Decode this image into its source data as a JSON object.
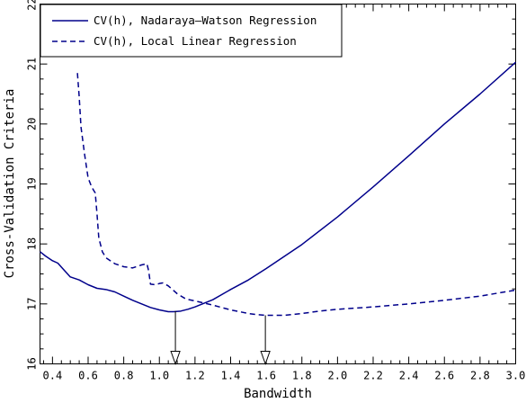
{
  "chart_data": {
    "type": "line",
    "title": "",
    "xlabel": "Bandwidth",
    "ylabel": "Cross-Validation Criteria",
    "xlim": [
      0.33,
      3.0
    ],
    "ylim": [
      16,
      22
    ],
    "grid": false,
    "legend_position": "top-left",
    "xticks": [
      {
        "value": 0.4,
        "label": "0.4"
      },
      {
        "value": 0.6,
        "label": "0.6"
      },
      {
        "value": 0.8,
        "label": "0.8"
      },
      {
        "value": 1.0,
        "label": "1.0"
      },
      {
        "value": 1.2,
        "label": "1.2"
      },
      {
        "value": 1.4,
        "label": "1.4"
      },
      {
        "value": 1.6,
        "label": "1.6"
      },
      {
        "value": 1.8,
        "label": "1.8"
      },
      {
        "value": 2.0,
        "label": "2.0"
      },
      {
        "value": 2.2,
        "label": "2.2"
      },
      {
        "value": 2.4,
        "label": "2.4"
      },
      {
        "value": 2.6,
        "label": "2.6"
      },
      {
        "value": 2.8,
        "label": "2.8"
      },
      {
        "value": 3.0,
        "label": "3.0"
      }
    ],
    "yticks": [
      {
        "value": 16,
        "label": "16"
      },
      {
        "value": 17,
        "label": "17"
      },
      {
        "value": 18,
        "label": "18"
      },
      {
        "value": 19,
        "label": "19"
      },
      {
        "value": 20,
        "label": "20"
      },
      {
        "value": 21,
        "label": "21"
      },
      {
        "value": 22,
        "label": "22"
      }
    ],
    "series": [
      {
        "name": "CV(h), Nadaraya–Watson Regression",
        "style": "solid",
        "color": "#00008b",
        "x": [
          0.33,
          0.36,
          0.4,
          0.43,
          0.46,
          0.5,
          0.55,
          0.6,
          0.65,
          0.7,
          0.75,
          0.8,
          0.85,
          0.9,
          0.95,
          1.0,
          1.05,
          1.08,
          1.12,
          1.16,
          1.2,
          1.25,
          1.3,
          1.4,
          1.5,
          1.6,
          1.8,
          2.0,
          2.2,
          2.4,
          2.6,
          2.8,
          3.0
        ],
        "y": [
          17.87,
          17.8,
          17.72,
          17.68,
          17.58,
          17.45,
          17.4,
          17.32,
          17.26,
          17.24,
          17.2,
          17.13,
          17.06,
          17.0,
          16.94,
          16.9,
          16.87,
          16.87,
          16.88,
          16.91,
          16.95,
          17.01,
          17.07,
          17.24,
          17.4,
          17.59,
          17.99,
          18.45,
          18.95,
          19.47,
          20.0,
          20.5,
          21.03
        ]
      },
      {
        "name": "CV(h), Local Linear Regression",
        "style": "dashed",
        "color": "#00008b",
        "x": [
          0.54,
          0.55,
          0.56,
          0.58,
          0.6,
          0.62,
          0.64,
          0.65,
          0.66,
          0.68,
          0.7,
          0.75,
          0.8,
          0.85,
          0.9,
          0.93,
          0.94,
          0.95,
          0.98,
          1.0,
          1.02,
          1.05,
          1.1,
          1.15,
          1.2,
          1.3,
          1.4,
          1.5,
          1.55,
          1.6,
          1.7,
          1.8,
          1.9,
          2.0,
          2.2,
          2.4,
          2.6,
          2.8,
          3.0
        ],
        "y": [
          20.85,
          20.45,
          19.95,
          19.5,
          19.1,
          18.95,
          18.85,
          18.5,
          18.1,
          17.87,
          17.77,
          17.67,
          17.62,
          17.6,
          17.65,
          17.67,
          17.55,
          17.33,
          17.32,
          17.34,
          17.35,
          17.3,
          17.17,
          17.08,
          17.05,
          16.98,
          16.9,
          16.84,
          16.82,
          16.81,
          16.81,
          16.84,
          16.88,
          16.91,
          16.95,
          17.0,
          17.06,
          17.13,
          17.23
        ]
      }
    ],
    "annotations": [
      {
        "type": "down-arrow",
        "x": 1.09,
        "from_y": 16.88,
        "to_y": 16.0
      },
      {
        "type": "down-arrow",
        "x": 1.595,
        "from_y": 16.81,
        "to_y": 16.0
      }
    ]
  }
}
